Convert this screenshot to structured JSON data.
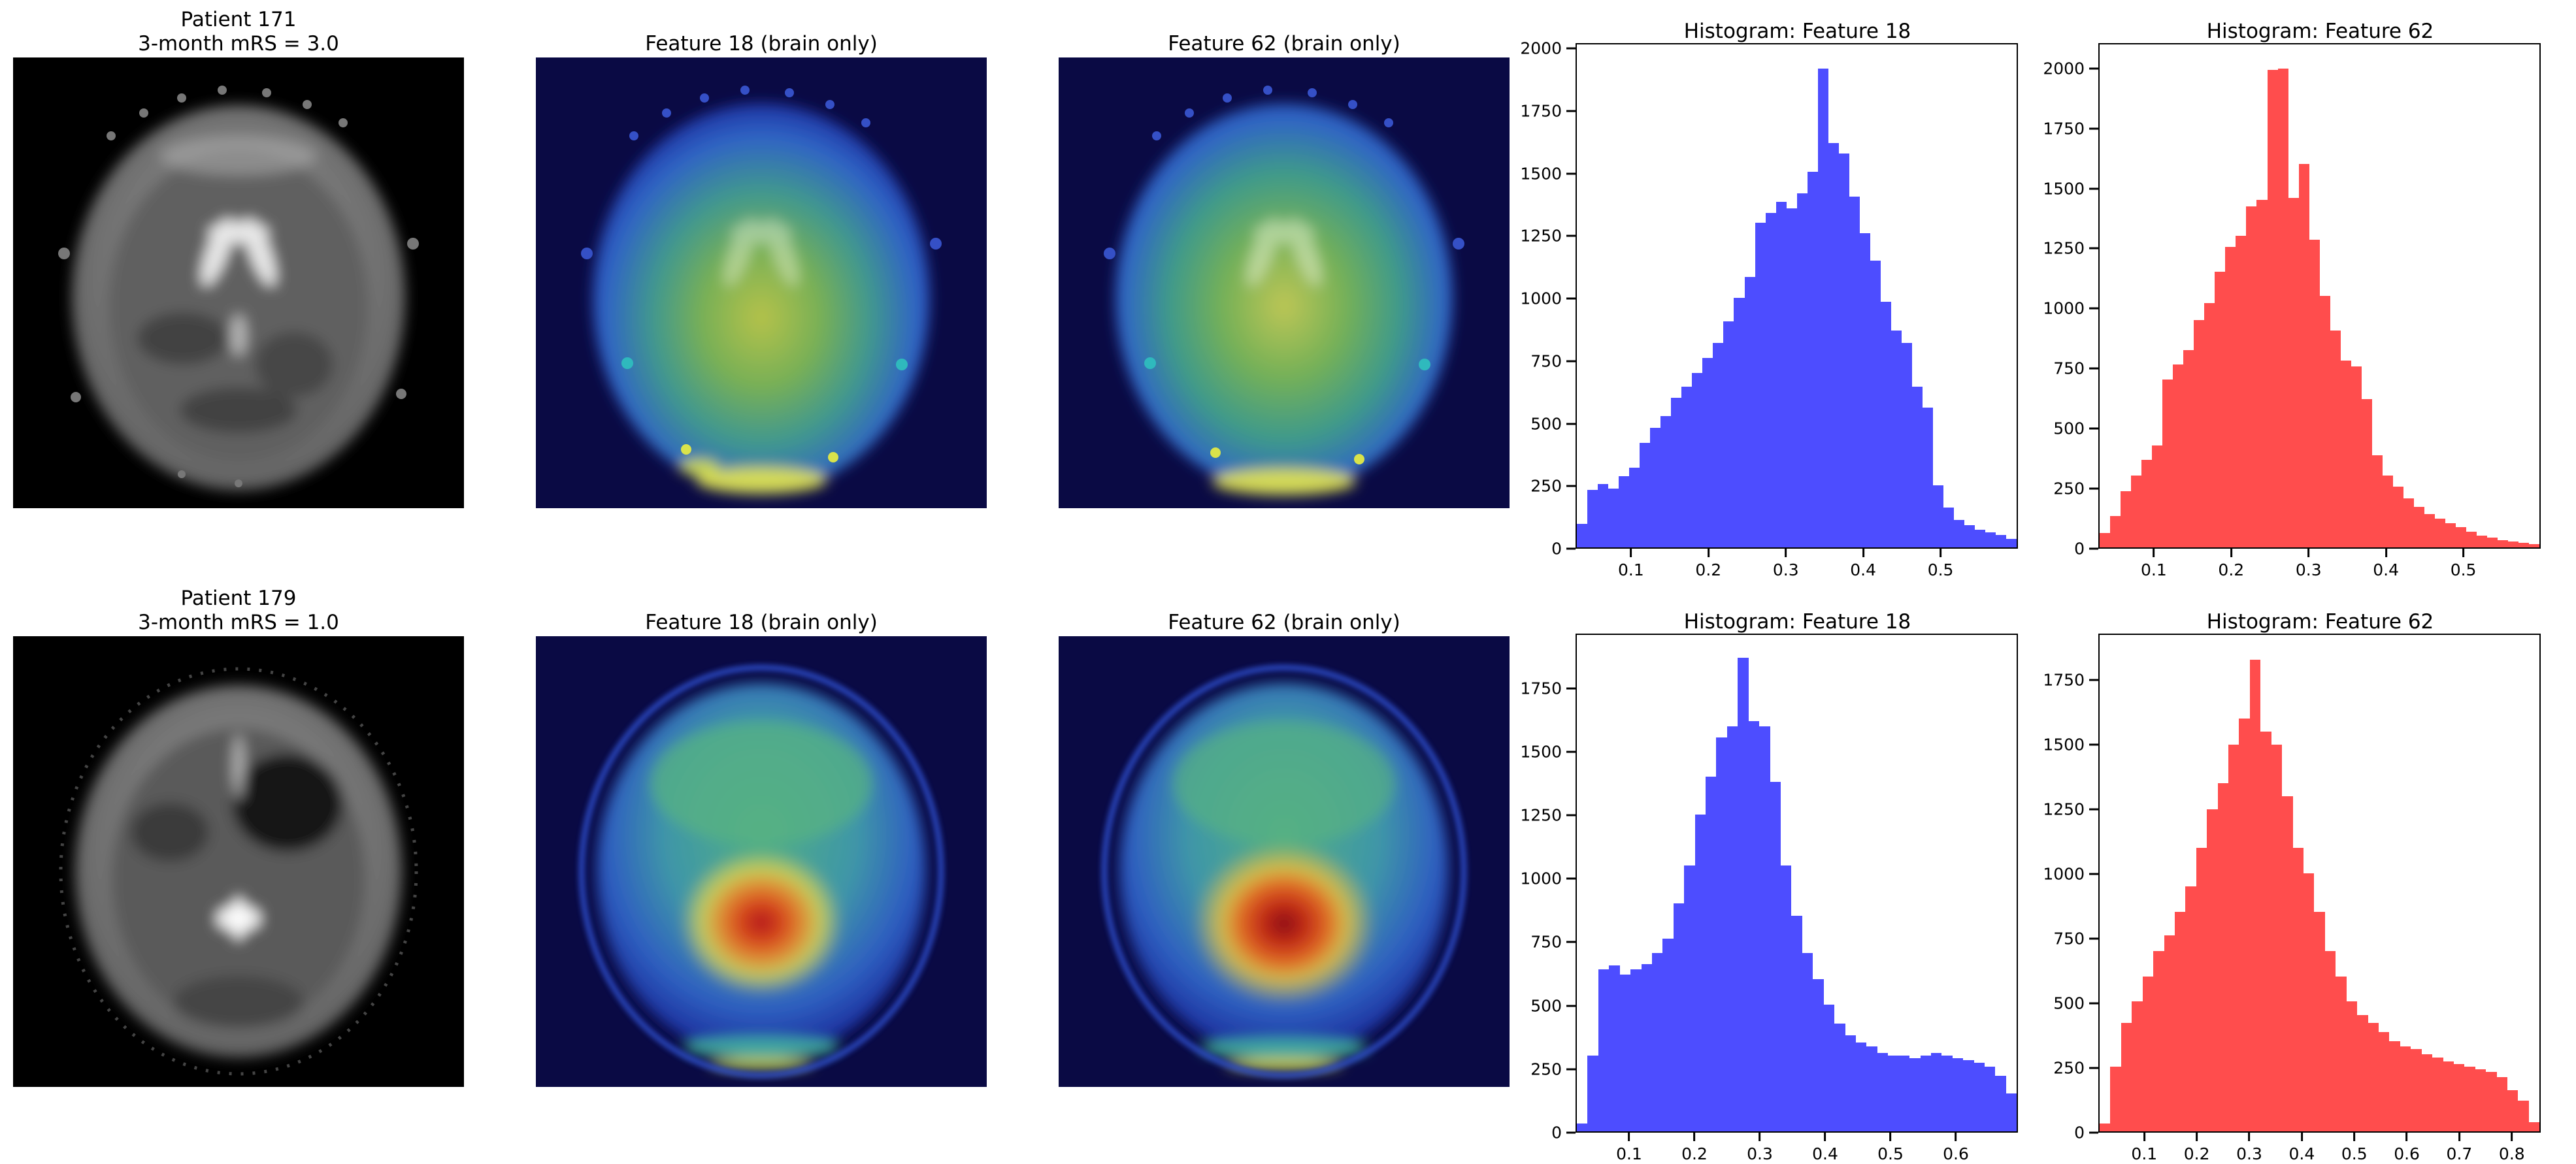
{
  "rows": [
    {
      "patient_line1": "Patient 171",
      "patient_line2": "3-month mRS = 3.0",
      "feature18_title": "Feature 18 (brain only)",
      "feature62_title": "Feature 62 (brain only)"
    },
    {
      "patient_line1": "Patient 179",
      "patient_line2": "3-month mRS = 1.0",
      "feature18_title": "Feature 18 (brain only)",
      "feature62_title": "Feature 62 (brain only)"
    }
  ],
  "colors": {
    "hist_blue": "#4d4dff",
    "hist_red": "#ff4d4d",
    "heatmap_background": "#0a0a44",
    "mri_background": "#000000"
  },
  "chart_data": [
    {
      "type": "bar",
      "subtype": "histogram",
      "patient": "Patient 171",
      "title": "Histogram: Feature 18",
      "color": "#4d4dff",
      "xlim": [
        0.03,
        0.6
      ],
      "ylim": [
        0,
        2016
      ],
      "x_ticks": [
        0.1,
        0.2,
        0.3,
        0.4,
        0.5
      ],
      "y_ticks": [
        0,
        250,
        500,
        750,
        1000,
        1250,
        1500,
        1750,
        2000
      ],
      "bin_start": 0.05,
      "bin_width": 0.0125,
      "values": [
        95,
        230,
        255,
        235,
        285,
        320,
        420,
        480,
        525,
        600,
        645,
        700,
        760,
        820,
        905,
        1000,
        1085,
        1300,
        1340,
        1385,
        1360,
        1420,
        1505,
        1920,
        1620,
        1580,
        1405,
        1260,
        1150,
        985,
        870,
        820,
        645,
        560,
        250,
        160,
        110,
        90,
        70,
        60,
        50,
        35
      ]
    },
    {
      "type": "bar",
      "subtype": "histogram",
      "patient": "Patient 171",
      "title": "Histogram: Feature 62",
      "color": "#ff4d4d",
      "xlim": [
        0.03,
        0.6
      ],
      "ylim": [
        0,
        2100
      ],
      "x_ticks": [
        0.1,
        0.2,
        0.3,
        0.4,
        0.5
      ],
      "y_ticks": [
        0,
        250,
        500,
        750,
        1000,
        1250,
        1500,
        1750,
        2000
      ],
      "bin_start": 0.05,
      "bin_width": 0.0125,
      "values": [
        60,
        130,
        235,
        300,
        365,
        425,
        700,
        765,
        825,
        950,
        1020,
        1150,
        1255,
        1300,
        1425,
        1450,
        1995,
        2000,
        1460,
        1600,
        1285,
        1050,
        905,
        780,
        755,
        620,
        385,
        300,
        255,
        205,
        170,
        140,
        120,
        100,
        85,
        65,
        50,
        40,
        30,
        25,
        20,
        15
      ]
    },
    {
      "type": "bar",
      "subtype": "histogram",
      "patient": "Patient 179",
      "title": "Histogram: Feature 18",
      "color": "#4d4dff",
      "xlim": [
        0.02,
        0.695
      ],
      "ylim": [
        0,
        1960
      ],
      "x_ticks": [
        0.1,
        0.2,
        0.3,
        0.4,
        0.5,
        0.6
      ],
      "y_ticks": [
        0,
        250,
        500,
        750,
        1000,
        1250,
        1500,
        1750
      ],
      "bin_start": 0.05,
      "bin_width": 0.015,
      "values": [
        30,
        300,
        640,
        655,
        620,
        640,
        660,
        705,
        760,
        900,
        1050,
        1250,
        1400,
        1555,
        1600,
        1870,
        1620,
        1600,
        1380,
        1050,
        850,
        705,
        600,
        500,
        425,
        380,
        350,
        335,
        310,
        300,
        300,
        290,
        300,
        310,
        300,
        290,
        280,
        270,
        255,
        220,
        150
      ]
    },
    {
      "type": "bar",
      "subtype": "histogram",
      "patient": "Patient 179",
      "title": "Histogram: Feature 62",
      "color": "#ff4d4d",
      "xlim": [
        0.015,
        0.855
      ],
      "ylim": [
        0,
        1925
      ],
      "x_ticks": [
        0.1,
        0.2,
        0.3,
        0.4,
        0.5,
        0.6,
        0.7,
        0.8
      ],
      "y_ticks": [
        0,
        250,
        500,
        750,
        1000,
        1250,
        1500,
        1750
      ],
      "bin_start": 0.05,
      "bin_width": 0.0188,
      "values": [
        30,
        250,
        420,
        505,
        600,
        700,
        760,
        850,
        950,
        1100,
        1250,
        1350,
        1500,
        1600,
        1830,
        1550,
        1500,
        1300,
        1100,
        1000,
        850,
        700,
        600,
        505,
        450,
        420,
        385,
        350,
        330,
        320,
        300,
        285,
        270,
        260,
        250,
        240,
        230,
        210,
        160,
        120,
        35
      ]
    }
  ]
}
